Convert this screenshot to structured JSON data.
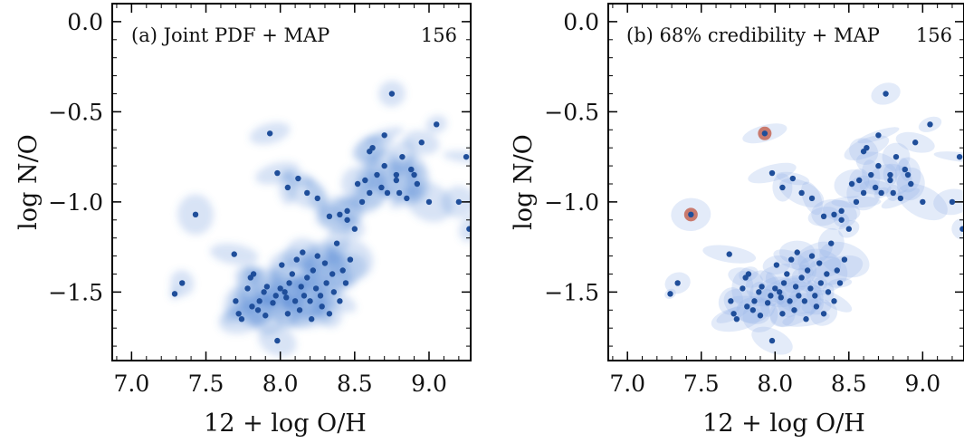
{
  "figure": {
    "panels": [
      {
        "label": "(a) Joint PDF + MAP",
        "count": "156",
        "xlabel": "12 + log O/H",
        "ylabel": "log N/O"
      },
      {
        "label": "(b) 68% credibility + MAP",
        "count": "156",
        "xlabel": "12 + log O/H",
        "ylabel": "log N/O"
      }
    ]
  },
  "chart_data": [
    {
      "type": "scatter",
      "title": "(a) Joint PDF + MAP",
      "annotation": "156",
      "xlabel": "12 + log O/H",
      "ylabel": "log N/O",
      "xlim": [
        6.87,
        9.28
      ],
      "ylim": [
        -1.88,
        0.1
      ],
      "xticks": [
        "7.0",
        "7.5",
        "8.0",
        "8.5",
        "9.0"
      ],
      "yticks": [
        "0.0",
        "−0.5",
        "−1.0",
        "−1.5"
      ],
      "background": "joint probability density (blue shading)",
      "colors": {
        "points": "#1f4e9a",
        "density": "#4a7fd0"
      },
      "series": [
        {
          "x": [
            7.29,
            7.34,
            7.43,
            7.69,
            7.7,
            7.72,
            7.74,
            7.78,
            7.8,
            7.81,
            7.82,
            7.85,
            7.86,
            7.89,
            7.91,
            7.93,
            7.95,
            7.97,
            7.98,
            8.0,
            8.01,
            8.03,
            8.04,
            8.05,
            8.06,
            8.08,
            8.1,
            8.11,
            8.13,
            8.14,
            8.15,
            8.16,
            8.18,
            8.2,
            8.21,
            8.22,
            8.24,
            8.25,
            8.27,
            8.28,
            8.3,
            8.31,
            8.33,
            8.35,
            8.36,
            8.38,
            8.4,
            8.42,
            8.44,
            8.45,
            8.47,
            8.5,
            8.52,
            8.55,
            8.57,
            8.6,
            8.62,
            8.65,
            8.68,
            8.7,
            8.72,
            8.75,
            8.78,
            8.8,
            8.82,
            8.85,
            8.88,
            8.9,
            8.95,
            9.0,
            9.05,
            9.2,
            9.25,
            9.27,
            7.9,
            7.98,
            8.05,
            8.12,
            8.18,
            8.25,
            8.33,
            8.4,
            8.45,
            8.6,
            8.7,
            8.78,
            8.92
          ],
          "y": [
            -1.51,
            -1.45,
            -1.07,
            -1.29,
            -1.55,
            -1.62,
            -1.65,
            -1.48,
            -1.42,
            -1.58,
            -1.4,
            -1.6,
            -1.55,
            -1.5,
            -1.47,
            -0.62,
            -1.56,
            -1.52,
            -1.77,
            -1.48,
            -1.35,
            -1.5,
            -1.53,
            -1.62,
            -1.45,
            -1.4,
            -1.55,
            -1.32,
            -1.6,
            -1.47,
            -1.28,
            -1.52,
            -1.42,
            -1.55,
            -1.65,
            -1.38,
            -1.48,
            -1.3,
            -1.52,
            -1.58,
            -1.34,
            -1.45,
            -1.62,
            -1.4,
            -1.5,
            -1.23,
            -1.55,
            -1.38,
            -1.45,
            -1.05,
            -1.32,
            -1.15,
            -0.9,
            -1.0,
            -0.88,
            -0.95,
            -0.7,
            -0.85,
            -0.92,
            -0.8,
            -0.95,
            -0.4,
            -0.88,
            -0.95,
            -0.75,
            -0.98,
            -0.82,
            -0.85,
            -0.67,
            -1.0,
            -0.57,
            -1.0,
            -0.75,
            -1.15,
            -1.63,
            -0.84,
            -0.92,
            -0.87,
            -0.95,
            -0.98,
            -1.08,
            -1.07,
            -1.1,
            -0.72,
            -0.63,
            -0.85,
            -0.9
          ]
        }
      ]
    },
    {
      "type": "scatter",
      "title": "(b) 68% credibility + MAP",
      "annotation": "156",
      "xlabel": "12 + log O/H",
      "ylabel": "log N/O",
      "xlim": [
        6.87,
        9.28
      ],
      "ylim": [
        -1.88,
        0.1
      ],
      "xticks": [
        "7.0",
        "7.5",
        "8.0",
        "8.5",
        "9.0"
      ],
      "yticks": [
        "0.0",
        "−0.5",
        "−1.0",
        "−1.5"
      ],
      "background": "68% credibility regions (light blue ellipses)",
      "colors": {
        "points": "#1f4e9a",
        "regions": "#9bb8ea",
        "highlight": "#c97a6e"
      },
      "highlighted_points": [
        {
          "x": 7.43,
          "y": -1.07
        },
        {
          "x": 7.93,
          "y": -0.62
        }
      ],
      "series": [
        {
          "x": [
            7.29,
            7.34,
            7.43,
            7.69,
            7.7,
            7.72,
            7.74,
            7.78,
            7.8,
            7.81,
            7.82,
            7.85,
            7.86,
            7.89,
            7.91,
            7.93,
            7.95,
            7.97,
            7.98,
            8.0,
            8.01,
            8.03,
            8.04,
            8.05,
            8.06,
            8.08,
            8.1,
            8.11,
            8.13,
            8.14,
            8.15,
            8.16,
            8.18,
            8.2,
            8.21,
            8.22,
            8.24,
            8.25,
            8.27,
            8.28,
            8.3,
            8.31,
            8.33,
            8.35,
            8.36,
            8.38,
            8.4,
            8.42,
            8.44,
            8.45,
            8.47,
            8.5,
            8.52,
            8.55,
            8.57,
            8.6,
            8.62,
            8.65,
            8.68,
            8.7,
            8.72,
            8.75,
            8.78,
            8.8,
            8.82,
            8.85,
            8.88,
            8.9,
            8.95,
            9.0,
            9.05,
            9.2,
            9.25,
            9.27,
            7.9,
            7.98,
            8.05,
            8.12,
            8.18,
            8.25,
            8.33,
            8.4,
            8.45,
            8.6,
            8.7,
            8.78,
            8.92
          ],
          "y": [
            -1.51,
            -1.45,
            -1.07,
            -1.29,
            -1.55,
            -1.62,
            -1.65,
            -1.48,
            -1.42,
            -1.58,
            -1.4,
            -1.6,
            -1.55,
            -1.5,
            -1.47,
            -0.62,
            -1.56,
            -1.52,
            -1.77,
            -1.48,
            -1.35,
            -1.5,
            -1.53,
            -1.62,
            -1.45,
            -1.4,
            -1.55,
            -1.32,
            -1.6,
            -1.47,
            -1.28,
            -1.52,
            -1.42,
            -1.55,
            -1.65,
            -1.38,
            -1.48,
            -1.3,
            -1.52,
            -1.58,
            -1.34,
            -1.45,
            -1.62,
            -1.4,
            -1.5,
            -1.23,
            -1.55,
            -1.38,
            -1.45,
            -1.05,
            -1.32,
            -1.15,
            -0.9,
            -1.0,
            -0.88,
            -0.95,
            -0.7,
            -0.85,
            -0.92,
            -0.8,
            -0.95,
            -0.4,
            -0.88,
            -0.95,
            -0.75,
            -0.98,
            -0.82,
            -0.85,
            -0.67,
            -1.0,
            -0.57,
            -1.0,
            -0.75,
            -1.15,
            -1.63,
            -0.84,
            -0.92,
            -0.87,
            -0.95,
            -0.98,
            -1.08,
            -1.07,
            -1.1,
            -0.72,
            -0.63,
            -0.85,
            -0.9
          ]
        }
      ]
    }
  ]
}
